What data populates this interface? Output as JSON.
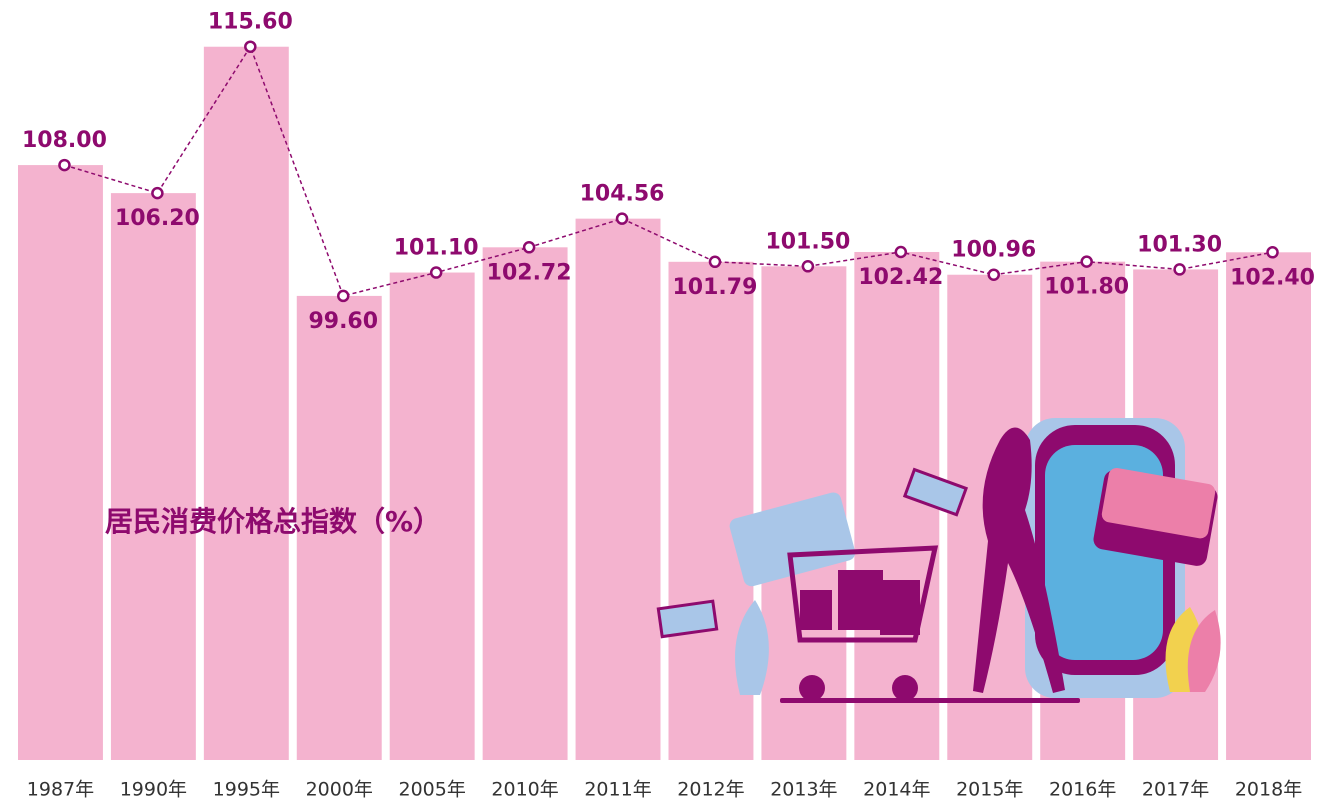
{
  "chart_data": {
    "type": "bar",
    "title": "居民消费价格总指数（%）",
    "categories": [
      "1987年",
      "1990年",
      "1995年",
      "2000年",
      "2005年",
      "2010年",
      "2011年",
      "2012年",
      "2013年",
      "2014年",
      "2015年",
      "2016年",
      "2017年",
      "2018年"
    ],
    "values": [
      108.0,
      106.2,
      115.6,
      99.6,
      101.1,
      102.72,
      104.56,
      101.79,
      101.5,
      102.42,
      100.96,
      101.8,
      101.3,
      102.4
    ],
    "value_labels": [
      "108.00",
      "106.20",
      "115.60",
      "99.60",
      "101.10",
      "102.72",
      "104.56",
      "101.79",
      "101.50",
      "102.42",
      "100.96",
      "101.80",
      "101.30",
      "102.40"
    ],
    "color": "#f4b3cf",
    "line_color": "#8e0a6e",
    "ylim": [
      69.8,
      118.6
    ]
  }
}
